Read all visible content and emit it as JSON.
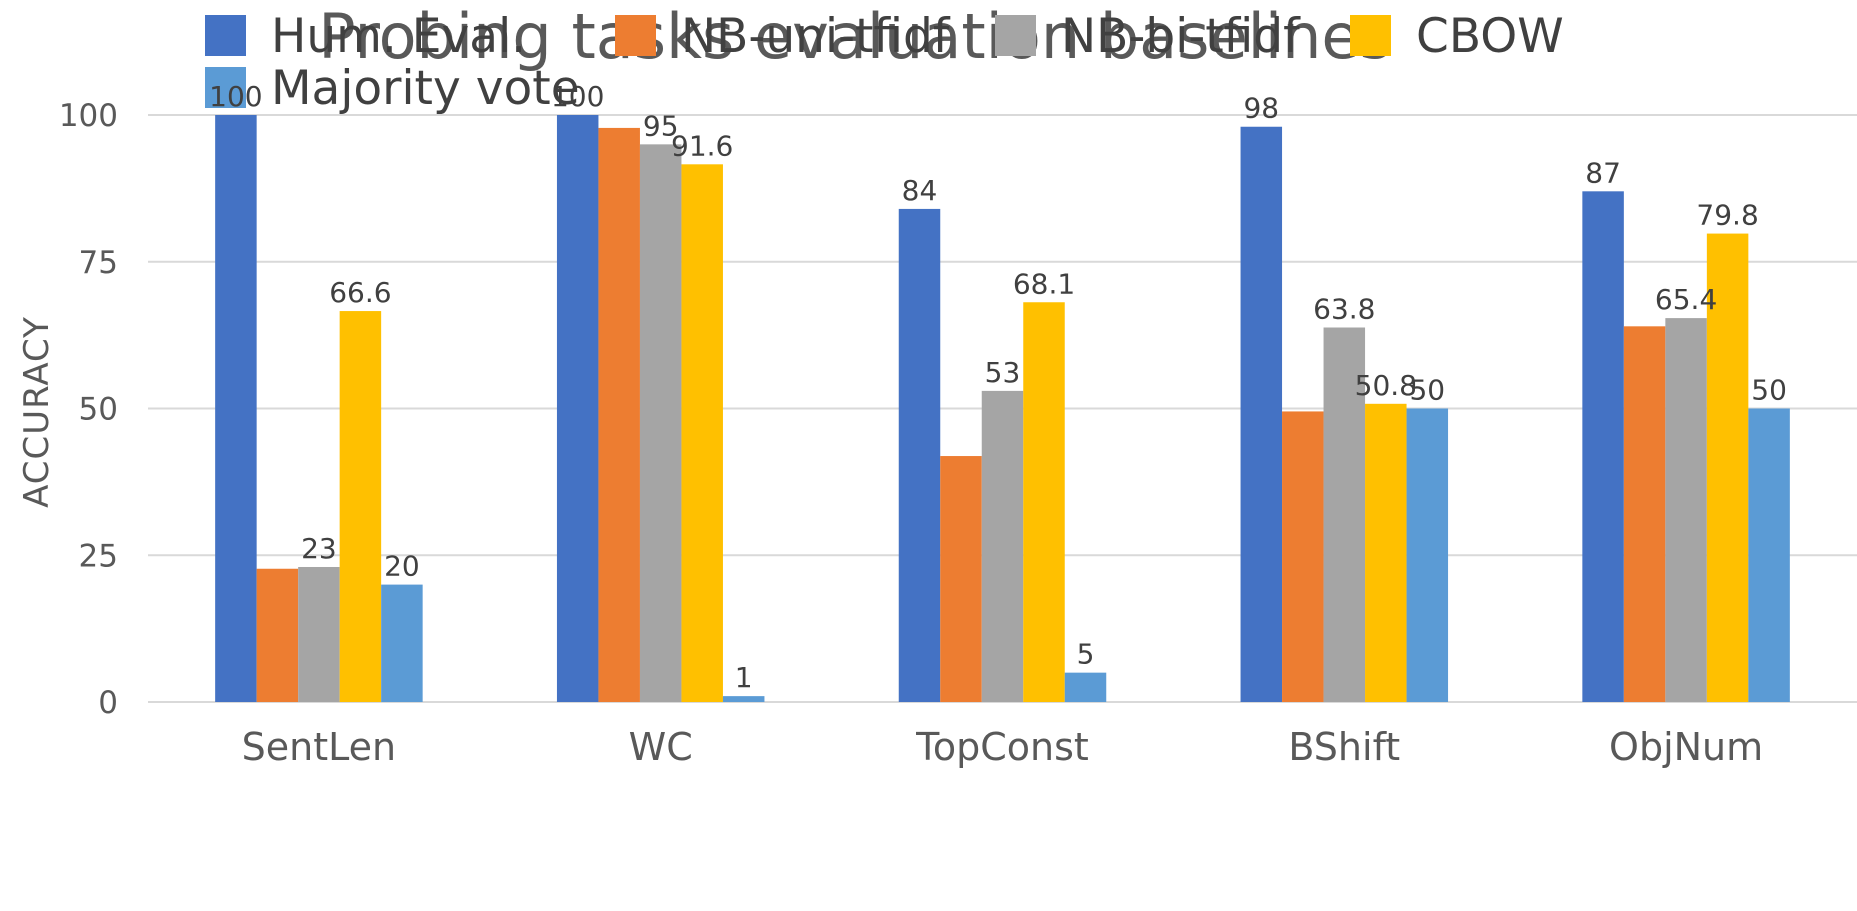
{
  "chart_data": {
    "type": "bar",
    "title": "Probing tasks evaluation baselines",
    "xlabel": "",
    "ylabel": "ACCURACY",
    "categories": [
      "SentLen",
      "WC",
      "TopConst",
      "BShift",
      "ObjNum"
    ],
    "ylim": [
      0,
      100
    ],
    "yticks": [
      0,
      25,
      50,
      75,
      100
    ],
    "grid": true,
    "legend_position": "top",
    "series": [
      {
        "name": "Hum. Eval.",
        "color": "#4472C4",
        "values": [
          100,
          100,
          84,
          98,
          87
        ],
        "labels": [
          "100",
          "100",
          "84",
          "98",
          "87"
        ]
      },
      {
        "name": "NB-uni-tfidf",
        "color": "#ED7D31",
        "values": [
          22.7,
          97.8,
          41.9,
          49.5,
          64.0
        ],
        "labels": [
          "",
          "",
          "",
          "",
          ""
        ]
      },
      {
        "name": "NB-bi-tfidf",
        "color": "#A5A5A5",
        "values": [
          23,
          95,
          53,
          63.8,
          65.4
        ],
        "labels": [
          "23",
          "95",
          "53",
          "63.8",
          "65.4"
        ]
      },
      {
        "name": "CBOW",
        "color": "#FFC000",
        "values": [
          66.6,
          91.6,
          68.1,
          50.8,
          79.8
        ],
        "labels": [
          "66.6",
          "91.6",
          "68.1",
          "50.8",
          "79.8"
        ]
      },
      {
        "name": "Majority vote",
        "color": "#5B9BD5",
        "values": [
          20,
          1,
          5,
          50,
          50
        ],
        "labels": [
          "20",
          "1",
          "5",
          "50",
          "50"
        ]
      }
    ]
  }
}
